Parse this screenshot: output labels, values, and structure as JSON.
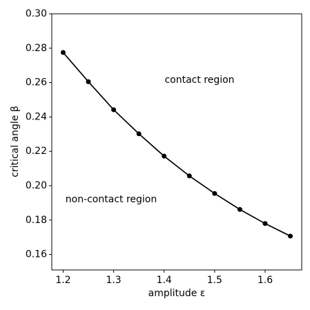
{
  "chart_data": {
    "type": "line",
    "x_label": "amplitude ε",
    "y_label": "critical angle β",
    "annotations": [
      "contact region",
      "non-contact region"
    ],
    "x": [
      1.2,
      1.25,
      1.3,
      1.35,
      1.4,
      1.45,
      1.5,
      1.55,
      1.6,
      1.65
    ],
    "series": [
      {
        "color": "#000000",
        "values": [
          0.2775,
          0.2605,
          0.2442,
          0.2302,
          0.2172,
          0.2057,
          0.1955,
          0.1862,
          0.178,
          0.1707
        ]
      }
    ],
    "xlim": [
      1.1775,
      1.6725
    ],
    "ylim": [
      0.151,
      0.3
    ],
    "xticks": [
      1.2,
      1.3,
      1.4,
      1.5,
      1.6
    ],
    "yticks": [
      0.16,
      0.18,
      {
        "value": 0.2,
        "label": "0.20"
      },
      0.22,
      0.24,
      0.26,
      0.28,
      {
        "value": 0.3,
        "label": "0.30"
      }
    ],
    "grid": false
  }
}
